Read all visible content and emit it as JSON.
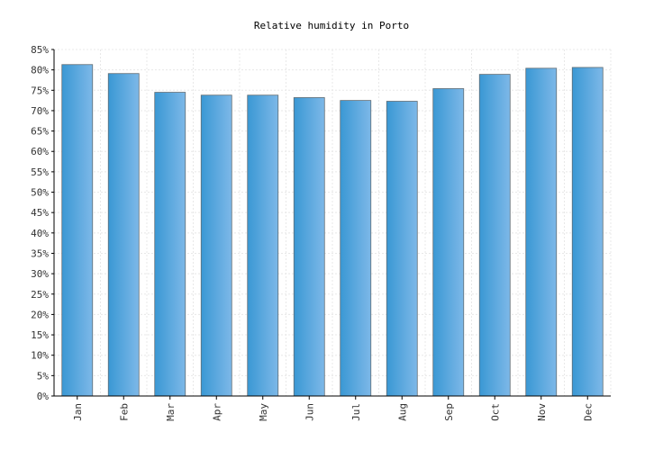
{
  "chart_data": {
    "type": "bar",
    "title": "Relative humidity in Porto",
    "xlabel": "",
    "ylabel": "",
    "categories": [
      "Jan",
      "Feb",
      "Mar",
      "Apr",
      "May",
      "Jun",
      "Jul",
      "Aug",
      "Sep",
      "Oct",
      "Nov",
      "Dec"
    ],
    "values": [
      81.3,
      79.1,
      74.5,
      73.8,
      73.8,
      73.2,
      72.5,
      72.3,
      75.4,
      78.9,
      80.4,
      80.6
    ],
    "ylim": [
      0,
      85
    ],
    "yticks": [
      "0%",
      "5%",
      "10%",
      "15%",
      "20%",
      "25%",
      "30%",
      "35%",
      "40%",
      "45%",
      "50%",
      "55%",
      "60%",
      "65%",
      "70%",
      "75%",
      "80%",
      "85%"
    ],
    "grid": true,
    "colors": {
      "bar_left": "#3a98d4",
      "bar_right": "#7db8e8"
    }
  }
}
